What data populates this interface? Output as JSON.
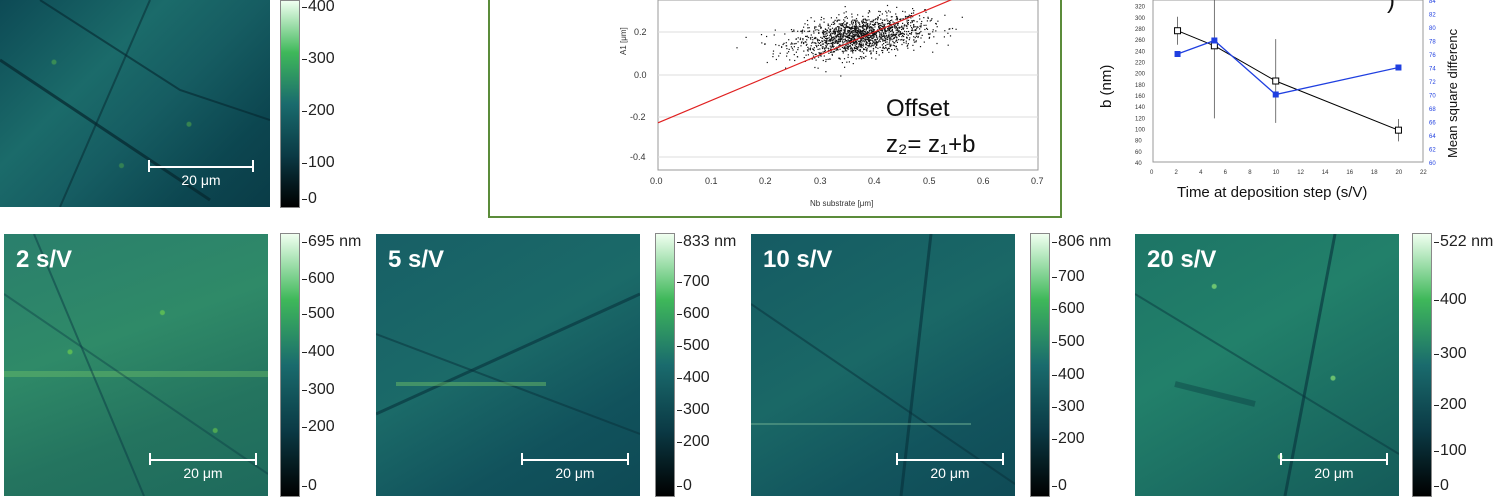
{
  "top_panel": {
    "scalebar": "20 μm",
    "colorbar_ticks": [
      "400",
      "300",
      "200",
      "100",
      "0"
    ]
  },
  "panels": [
    {
      "label": "2 s/V",
      "scalebar": "20 μm",
      "colorbar_ticks": [
        "695 nm",
        "600",
        "500",
        "400",
        "300",
        "200",
        "0"
      ]
    },
    {
      "label": "5 s/V",
      "scalebar": "20 μm",
      "colorbar_ticks": [
        "833 nm",
        "700",
        "600",
        "500",
        "400",
        "300",
        "200",
        "0"
      ]
    },
    {
      "label": "10 s/V",
      "scalebar": "20 μm",
      "colorbar_ticks": [
        "806 nm",
        "700",
        "600",
        "500",
        "400",
        "300",
        "200",
        "0"
      ]
    },
    {
      "label": "20 s/V",
      "scalebar": "20 μm",
      "colorbar_ticks": [
        "522 nm",
        "400",
        "300",
        "200",
        "100",
        "0"
      ]
    }
  ],
  "scatter_plot": {
    "xlabel": "Nb substrate [μm]",
    "ylabel": "A1 [μm]",
    "annotation_line1": "Offset",
    "annotation_line2": "z₂= z₁+b",
    "x_ticks": [
      "0.0",
      "0.1",
      "0.2",
      "0.3",
      "0.4",
      "0.5",
      "0.6",
      "0.7"
    ],
    "y_ticks": [
      "0.2",
      "0.0",
      "-0.2",
      "-0.4"
    ],
    "partial_label": "b)"
  },
  "chart_data": [
    {
      "type": "scatter",
      "xlabel": "Nb substrate [μm]",
      "ylabel": "A1 [μm]",
      "xlim": [
        0.0,
        0.7
      ],
      "ylim": [
        -0.42,
        0.3
      ],
      "cluster": {
        "center_x": 0.37,
        "center_y": 0.15,
        "spread_x": 0.06,
        "spread_y": 0.04
      },
      "fit_line": {
        "x": [
          0.0,
          0.56
        ],
        "y": [
          -0.22,
          0.32
        ],
        "color": "#e02020"
      }
    },
    {
      "type": "line",
      "xlabel": "Time at deposition step (s/V)",
      "ylabel": "b (nm)",
      "ylabel_right": "Mean square differenc",
      "xlim": [
        0,
        22
      ],
      "ylim": [
        40,
        330
      ],
      "ylim_right": [
        60,
        84
      ],
      "x_ticks": [
        "0",
        "2",
        "4",
        "6",
        "8",
        "10",
        "12",
        "14",
        "16",
        "18",
        "20",
        "22"
      ],
      "y_ticks": [
        "40",
        "60",
        "80",
        "100",
        "120",
        "140",
        "160",
        "180",
        "200",
        "220",
        "240",
        "260",
        "280",
        "300",
        "320"
      ],
      "y_ticks_right": [
        "60",
        "62",
        "64",
        "66",
        "68",
        "70",
        "72",
        "74",
        "76",
        "78",
        "80",
        "82",
        "84"
      ],
      "series": [
        {
          "color": "#000000",
          "x": [
            2,
            5,
            10,
            20
          ],
          "y": [
            275,
            248,
            185,
            97
          ],
          "err": [
            25,
            130,
            75,
            20
          ]
        },
        {
          "color": "#1f3fe0",
          "x": [
            2,
            5,
            10,
            20
          ],
          "y_right": [
            76,
            78,
            70,
            74
          ]
        }
      ],
      "partial_label": ")"
    }
  ]
}
